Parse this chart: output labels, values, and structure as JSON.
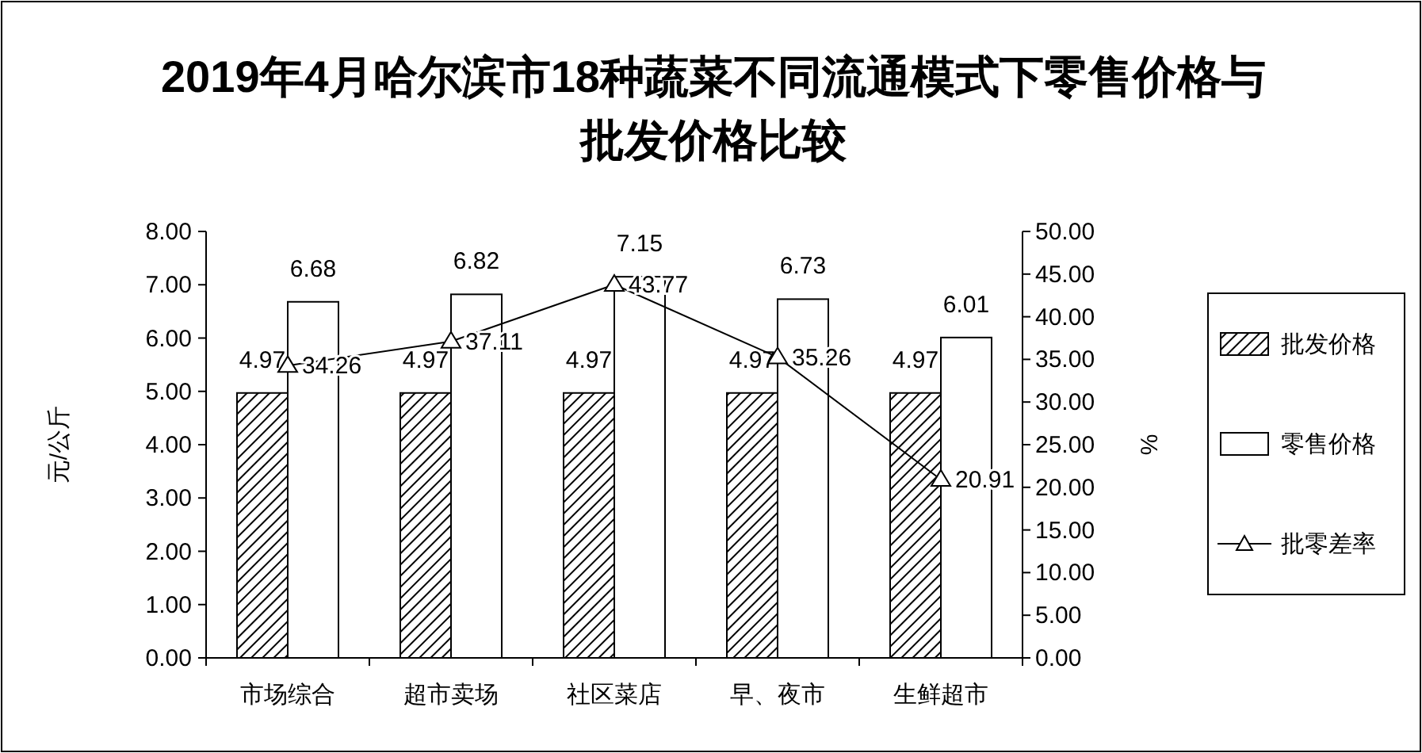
{
  "chart_data": {
    "type": "bar",
    "title": "2019年4月哈尔滨市18种蔬菜不同流通模式下零售价格与批发价格比较",
    "ylabel": "元/公斤",
    "y2label": "%",
    "categories": [
      "市场综合",
      "超市卖场",
      "社区菜店",
      "早、夜市",
      "生鲜超市"
    ],
    "series": [
      {
        "name": "批发价格",
        "color": "#000000",
        "values": [
          4.97,
          4.97,
          4.97,
          4.97,
          4.97
        ]
      },
      {
        "name": "零售价格",
        "color": "#ffffff",
        "values": [
          6.68,
          6.82,
          7.15,
          6.73,
          6.01
        ]
      },
      {
        "name": "批零差率",
        "type": "line",
        "axis": "y2",
        "color": "#000000",
        "marker": "triangle",
        "values": [
          34.26,
          37.11,
          43.77,
          35.26,
          20.91
        ]
      }
    ],
    "ylim": [
      0,
      8
    ],
    "yticks": [
      {
        "value": 0,
        "label": "0.00"
      },
      {
        "value": 1,
        "label": "1.00"
      },
      {
        "value": 2,
        "label": "2.00"
      },
      {
        "value": 3,
        "label": "3.00"
      },
      {
        "value": 4,
        "label": "4.00"
      },
      {
        "value": 5,
        "label": "5.00"
      },
      {
        "value": 6,
        "label": "6.00"
      },
      {
        "value": 7,
        "label": "7.00"
      },
      {
        "value": 8,
        "label": "8.00"
      }
    ],
    "y2lim": [
      0,
      50
    ],
    "y2ticks": [
      {
        "value": 0,
        "label": "0.00"
      },
      {
        "value": 5,
        "label": "5.00"
      },
      {
        "value": 10,
        "label": "10.00"
      },
      {
        "value": 15,
        "label": "15.00"
      },
      {
        "value": 20,
        "label": "20.00"
      },
      {
        "value": 25,
        "label": "25.00"
      },
      {
        "value": 30,
        "label": "30.00"
      },
      {
        "value": 35,
        "label": "35.00"
      },
      {
        "value": 40,
        "label": "40.00"
      },
      {
        "value": 45,
        "label": "45.00"
      },
      {
        "value": 50,
        "label": "50.00"
      }
    ],
    "data_labels": true,
    "legend": "right",
    "grid": false
  }
}
